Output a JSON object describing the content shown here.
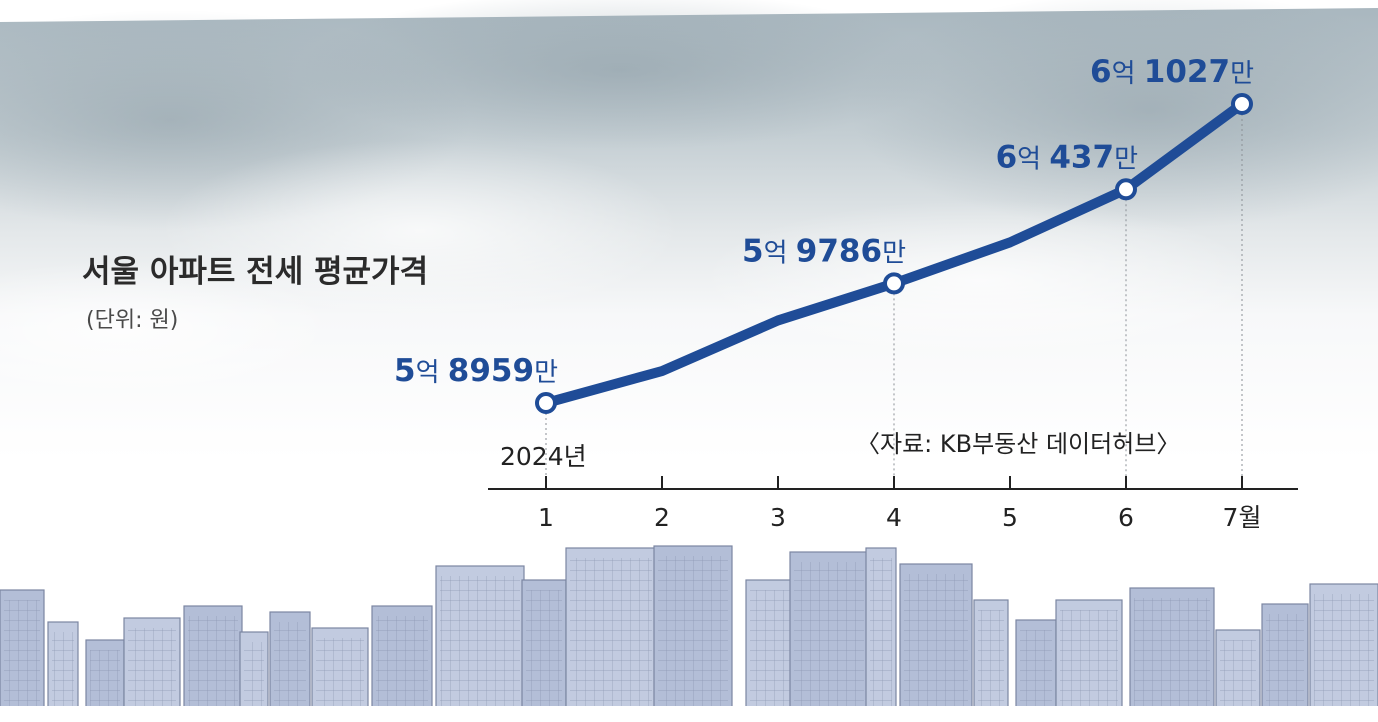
{
  "title": "서울 아파트 전세 평균가격",
  "subtitle": "(단위: 원)",
  "source": "〈자료: KB부동산 데이터허브〉",
  "year_label": "2024년",
  "colors": {
    "line": "#1f4c97",
    "label": "#1f4c97",
    "axis": "#222222",
    "sky": "#b9c4cb",
    "buildings": "#b8c3da"
  },
  "chart_data": {
    "type": "line",
    "title": "서울 아파트 전세 평균가격",
    "unit": "원",
    "categories": [
      "1",
      "2",
      "3",
      "4",
      "5",
      "6",
      "7월"
    ],
    "x": [
      1,
      2,
      3,
      4,
      5,
      6,
      7
    ],
    "values": [
      589590000,
      591800000,
      595300000,
      597860000,
      600700000,
      604370000,
      610270000
    ],
    "xlabel": "",
    "ylabel": "",
    "ylim": [
      589590000,
      610270000
    ],
    "grid": false,
    "legend": "none",
    "annotations": [
      {
        "x": 1,
        "parts": [
          {
            "text": "5",
            "bold": true
          },
          {
            "text": "억 ",
            "bold": false
          },
          {
            "text": "8959",
            "bold": true
          },
          {
            "text": "만",
            "bold": false
          }
        ]
      },
      {
        "x": 4,
        "parts": [
          {
            "text": "5",
            "bold": true
          },
          {
            "text": "억 ",
            "bold": false
          },
          {
            "text": "9786",
            "bold": true
          },
          {
            "text": "만",
            "bold": false
          }
        ]
      },
      {
        "x": 6,
        "parts": [
          {
            "text": "6",
            "bold": true
          },
          {
            "text": "억 ",
            "bold": false
          },
          {
            "text": "437",
            "bold": true
          },
          {
            "text": "만",
            "bold": false
          }
        ]
      },
      {
        "x": 7,
        "parts": [
          {
            "text": "6",
            "bold": true
          },
          {
            "text": "억 ",
            "bold": false
          },
          {
            "text": "1027",
            "bold": true
          },
          {
            "text": "만",
            "bold": false
          }
        ]
      }
    ]
  }
}
